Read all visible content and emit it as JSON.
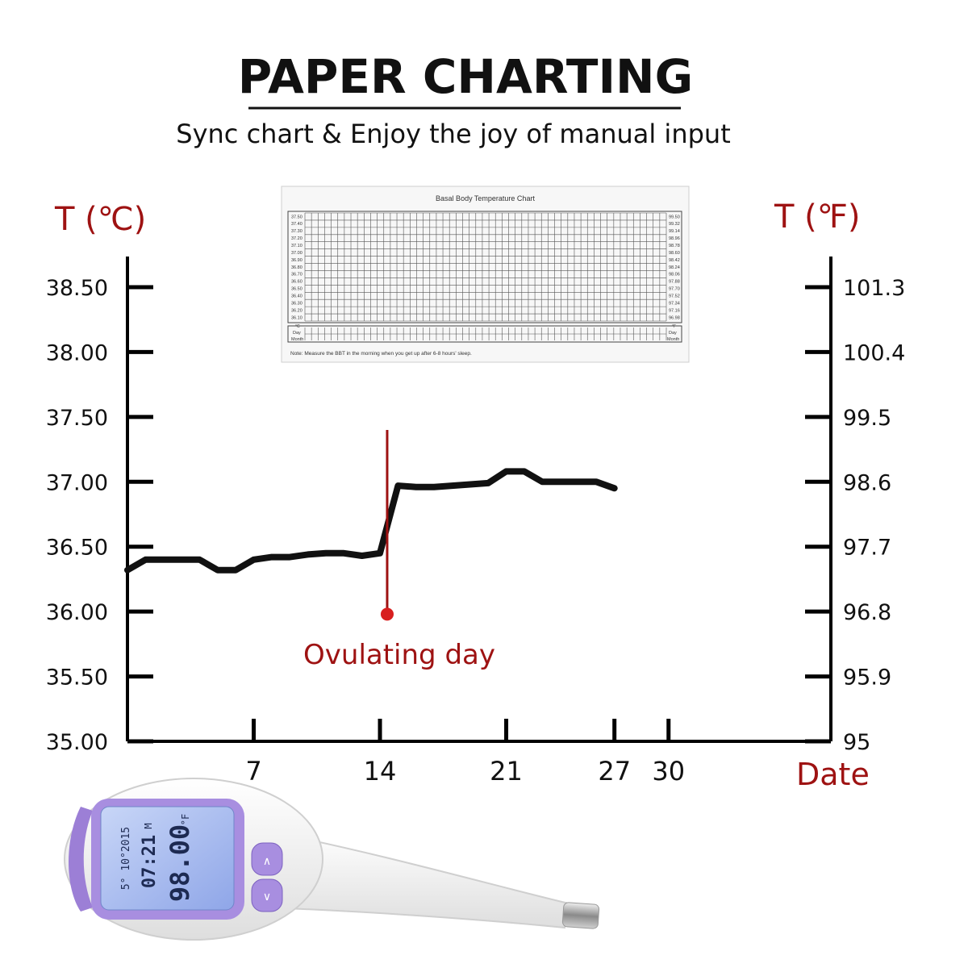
{
  "header": {
    "title": "PAPER CHARTING",
    "subtitle": "Sync chart & Enjoy the joy of manual input"
  },
  "colors": {
    "accent_red": "#9e1212",
    "axis": "#000000",
    "text": "#111111",
    "thermometer_purple": "#9c7fd6",
    "thermometer_screen": "#a8bff2",
    "marker": "#d81f1f"
  },
  "paper_chart": {
    "title": "Basal Body Temperature Chart",
    "celsius_labels": [
      "37.50",
      "37.40",
      "37.30",
      "37.20",
      "37.10",
      "37.00",
      "36.90",
      "36.80",
      "36.70",
      "36.60",
      "36.50",
      "36.40",
      "36.30",
      "36.20",
      "36.10"
    ],
    "fahrenheit_labels": [
      "99.50",
      "99.32",
      "99.14",
      "98.96",
      "98.78",
      "98.60",
      "98.42",
      "98.24",
      "98.06",
      "97.88",
      "97.70",
      "97.52",
      "97.34",
      "97.16",
      "96.98"
    ],
    "celsius_unit": "°C",
    "fahrenheit_unit": "°F",
    "row_day": "Day",
    "row_month": "Month",
    "note": "Note: Measure the BBT in the morning when you get up after 6-8 hours' sleep."
  },
  "chart_data": {
    "type": "line",
    "title": "",
    "left_axis_label": "T (℃)",
    "right_axis_label": "T (℉)",
    "xlabel": "Date",
    "x_ticks": [
      7,
      14,
      21,
      27,
      30
    ],
    "y_ticks_left": [
      "35.00",
      "35.50",
      "36.00",
      "36.50",
      "37.00",
      "37.50",
      "38.00",
      "38.50"
    ],
    "y_ticks_right": [
      "95",
      "95.9",
      "96.8",
      "97.7",
      "98.6",
      "99.5",
      "100.4",
      "101.3"
    ],
    "xlim": [
      0,
      39
    ],
    "ylim": [
      35.0,
      38.5
    ],
    "grid": false,
    "series": [
      {
        "x": [
          0,
          1,
          2,
          3,
          4,
          5,
          6,
          7,
          8,
          9,
          10,
          11,
          12,
          13,
          14,
          15,
          16,
          17,
          18,
          19,
          20,
          21,
          22,
          23,
          24,
          25,
          26,
          27
        ],
        "y": [
          36.32,
          36.4,
          36.4,
          36.4,
          36.4,
          36.32,
          36.32,
          36.4,
          36.42,
          36.42,
          36.44,
          36.45,
          36.45,
          36.43,
          36.45,
          36.97,
          36.96,
          36.96,
          36.97,
          36.98,
          36.99,
          37.08,
          37.08,
          37.0,
          37.0,
          37.0,
          37.0,
          36.95
        ]
      }
    ],
    "annotations": [
      {
        "text": "Ovulating day",
        "x": 14.4,
        "y_from": 35.98,
        "y_to": 37.4
      }
    ]
  },
  "thermometer": {
    "display_date_top": "15",
    "display_date": "5° 10°2015",
    "display_time": "07:21",
    "display_mode": "M",
    "display_temp": "98.00",
    "display_unit": "°F",
    "button_up": "∧",
    "button_down": "∨"
  }
}
